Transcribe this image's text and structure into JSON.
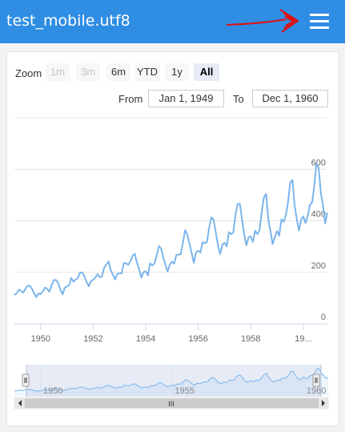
{
  "app": {
    "title": "test_mobile.utf8",
    "accent": "#2f8de4"
  },
  "range_selector": {
    "zoom_label": "Zoom",
    "buttons": [
      "1m",
      "3m",
      "6m",
      "YTD",
      "1y",
      "All"
    ],
    "disabled": [
      "1m",
      "3m"
    ],
    "active": "All",
    "from_label": "From",
    "from_value": "Jan 1, 1949",
    "to_label": "To",
    "to_value": "Dec 1, 1960"
  },
  "chart_data": {
    "type": "line",
    "series": [
      {
        "color": "#7cb5ec",
        "start": "1949-01",
        "interval": "month",
        "values": [
          112,
          118,
          132,
          129,
          121,
          135,
          148,
          148,
          136,
          119,
          104,
          118,
          115,
          126,
          141,
          135,
          125,
          149,
          170,
          170,
          158,
          133,
          114,
          140,
          145,
          150,
          178,
          163,
          172,
          178,
          199,
          199,
          184,
          162,
          146,
          166,
          171,
          180,
          193,
          181,
          183,
          218,
          230,
          242,
          209,
          191,
          172,
          194,
          196,
          196,
          236,
          235,
          229,
          243,
          264,
          272,
          237,
          211,
          180,
          201,
          204,
          188,
          235,
          227,
          234,
          264,
          302,
          293,
          259,
          229,
          203,
          229,
          242,
          233,
          267,
          269,
          270,
          315,
          364,
          347,
          312,
          274,
          237,
          278,
          284,
          277,
          317,
          313,
          318,
          374,
          413,
          405,
          355,
          306,
          271,
          306,
          315,
          301,
          356,
          348,
          355,
          422,
          465,
          467,
          404,
          347,
          305,
          336,
          340,
          318,
          362,
          348,
          363,
          435,
          491,
          505,
          404,
          359,
          310,
          337,
          360,
          342,
          406,
          396,
          420,
          472,
          548,
          559,
          463,
          407,
          362,
          405,
          417,
          391,
          419,
          461,
          472,
          535,
          622,
          606,
          508,
          461,
          390,
          432
        ]
      }
    ],
    "y_ticks": [
      "0",
      "200",
      "400",
      "600"
    ],
    "x_tick_labels": [
      "1950",
      "1952",
      "1954",
      "1956",
      "1958",
      "19..."
    ],
    "navigator_labels": [
      "1950",
      "1955",
      "1960"
    ],
    "navigator_range": [
      "Jan 1, 1949",
      "Dec 1, 1960"
    ]
  },
  "scrollbar": {
    "grip": "III"
  }
}
